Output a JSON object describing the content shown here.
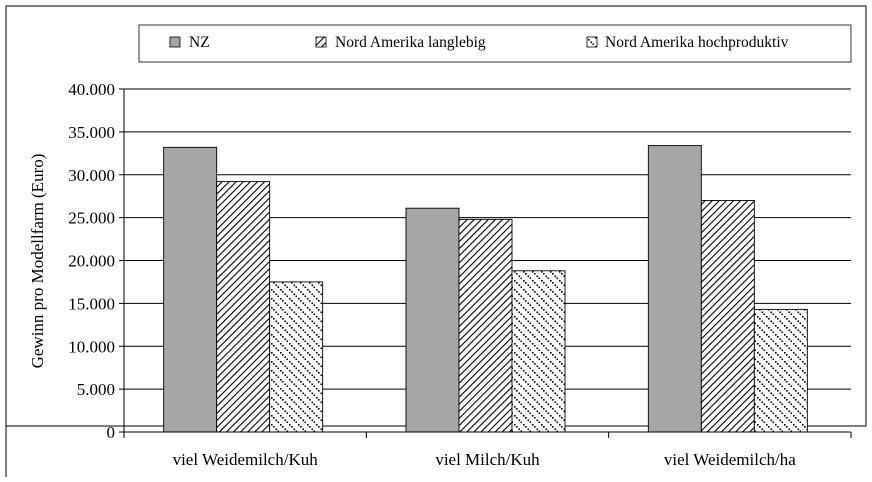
{
  "chart_data": {
    "type": "bar",
    "title": "",
    "xlabel": "",
    "ylabel": "Gewinn pro Modellfarm (Euro)",
    "categories": [
      "viel Weidemilch/Kuh",
      "viel Milch/Kuh",
      "viel Weidemilch/ha"
    ],
    "series": [
      {
        "name": "NZ",
        "values": [
          33200,
          26100,
          33400
        ],
        "pattern": "solid-gray",
        "color": "#a6a6a6"
      },
      {
        "name": "Nord Amerika langlebig",
        "values": [
          29200,
          24800,
          27000
        ],
        "pattern": "diagonal-hatch",
        "color": "#000000"
      },
      {
        "name": "Nord Amerika hochproduktiv",
        "values": [
          17500,
          18800,
          14300
        ],
        "pattern": "dotted-confetti",
        "color": "#000000"
      }
    ],
    "ylim": [
      0,
      40000
    ],
    "yticks": [
      0,
      5000,
      10000,
      15000,
      20000,
      25000,
      30000,
      35000,
      40000
    ],
    "ytick_labels": [
      "0",
      "5.000",
      "10.000",
      "15.000",
      "20.000",
      "25.000",
      "30.000",
      "35.000",
      "40.000"
    ],
    "grid": true,
    "legend_position": "top"
  }
}
